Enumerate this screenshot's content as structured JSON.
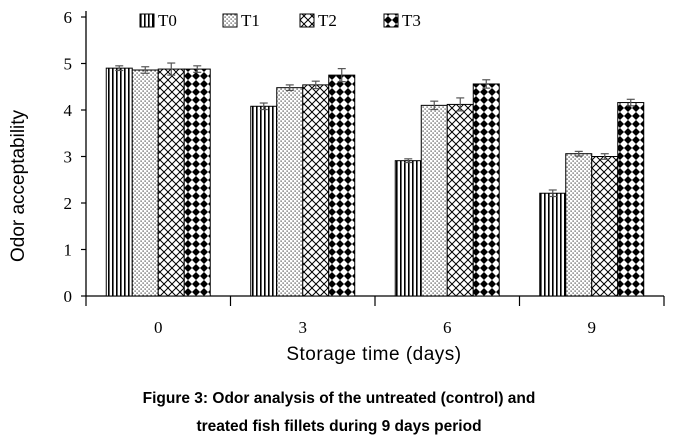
{
  "chart_data": {
    "type": "bar",
    "categories": [
      "0",
      "3",
      "6",
      "9"
    ],
    "series": [
      {
        "name": "T0",
        "values": [
          4.9,
          4.08,
          2.91,
          2.21
        ],
        "errors": [
          0.05,
          0.07,
          0.04,
          0.07
        ],
        "pattern": "vertical-stripes"
      },
      {
        "name": "T1",
        "values": [
          4.86,
          4.48,
          4.1,
          3.06
        ],
        "errors": [
          0.07,
          0.06,
          0.09,
          0.05
        ],
        "pattern": "dots"
      },
      {
        "name": "T2",
        "values": [
          4.88,
          4.54,
          4.12,
          3.0
        ],
        "errors": [
          0.13,
          0.08,
          0.14,
          0.06
        ],
        "pattern": "crosshatch"
      },
      {
        "name": "T3",
        "values": [
          4.88,
          4.75,
          4.56,
          4.16
        ],
        "errors": [
          0.07,
          0.14,
          0.09,
          0.07
        ],
        "pattern": "checker"
      }
    ],
    "xlabel": "Storage time (days)",
    "ylabel": "Odor acceptability",
    "ylim": [
      0,
      6
    ],
    "yticks": [
      "0",
      "1",
      "2",
      "3",
      "4",
      "5",
      "6"
    ],
    "grid": false,
    "legend_position": "top",
    "colors": {
      "bar_fill": "#ffffff",
      "pattern": "#000000",
      "axis": "#000000",
      "error_bar": "#555555"
    }
  },
  "caption": {
    "line1": "Figure 3: Odor analysis of the untreated (control) and",
    "line2": "treated fish fillets during 9 days period"
  }
}
